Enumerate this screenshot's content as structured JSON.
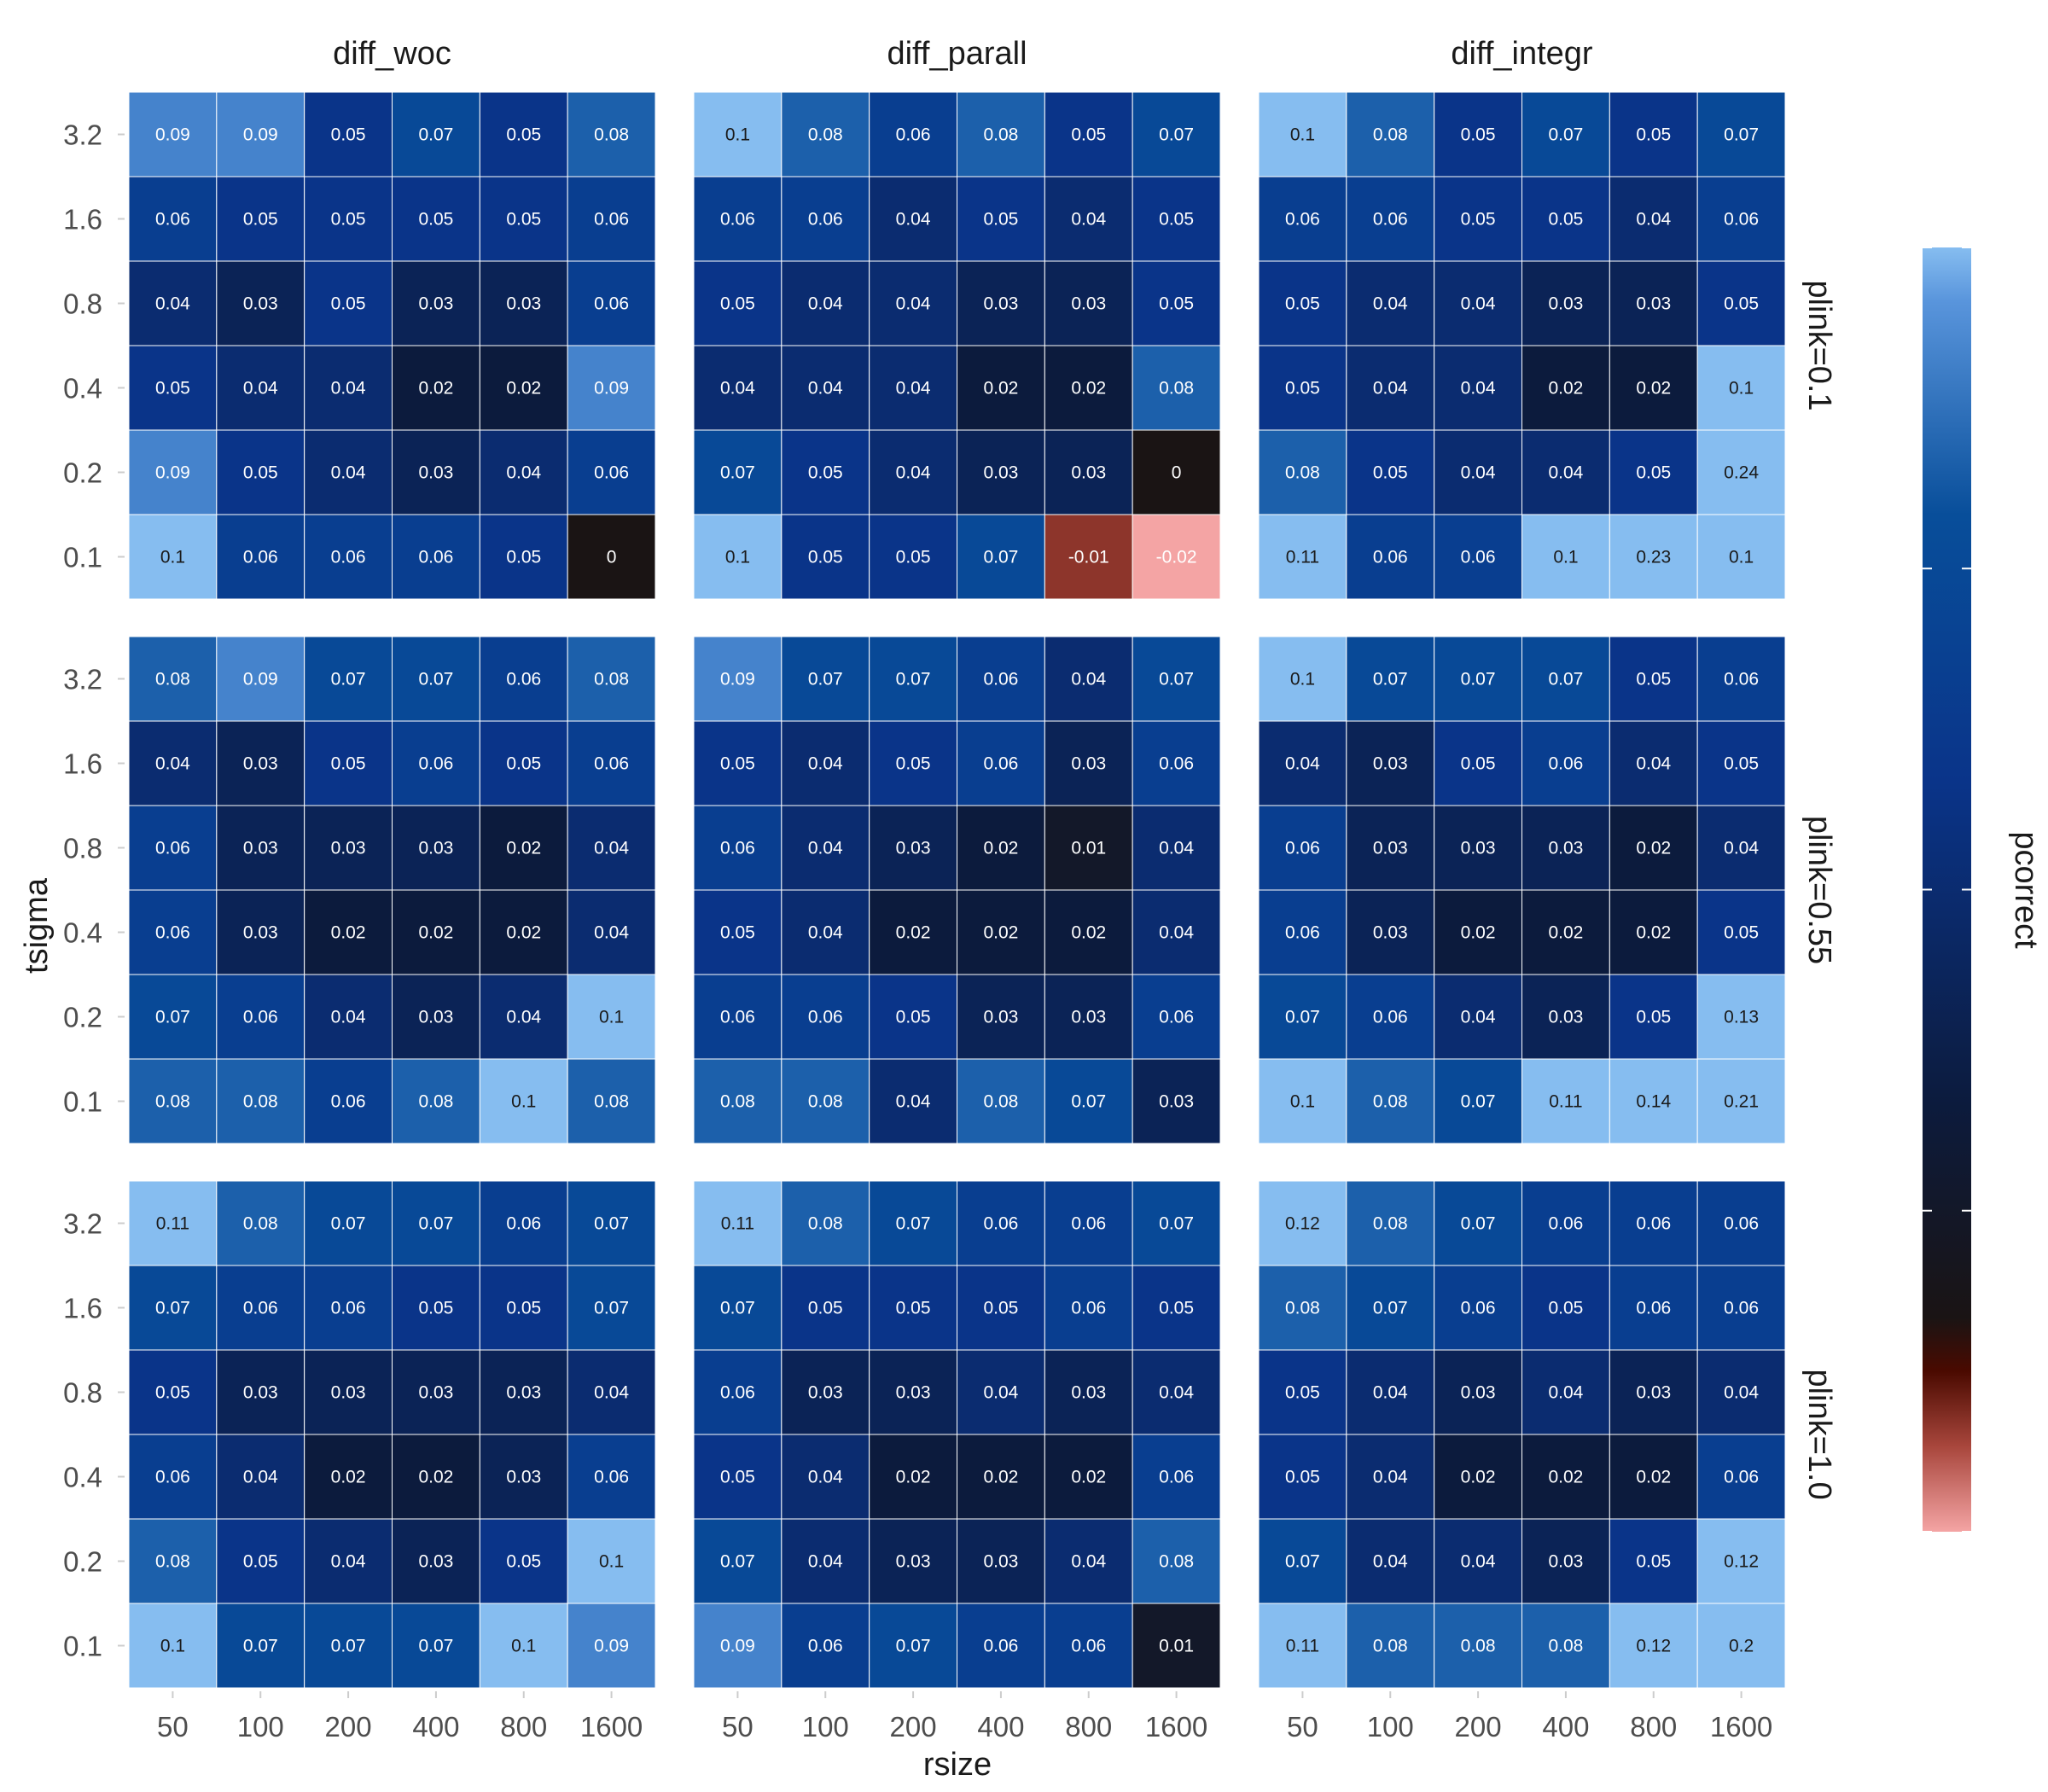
{
  "chart_data": {
    "type": "heatmap",
    "title": "",
    "xlabel": "rsize",
    "ylabel": "tsigma",
    "x_categories": [
      "50",
      "100",
      "200",
      "400",
      "800",
      "1600"
    ],
    "y_categories": [
      "3.2",
      "1.6",
      "0.8",
      "0.4",
      "0.2",
      "0.1"
    ],
    "facet_columns": [
      "diff_woc",
      "diff_parall",
      "diff_integr"
    ],
    "facet_rows": [
      "plink=0.1",
      "plink=0.55",
      "plink=1.0"
    ],
    "legend": {
      "title": "pcorrect",
      "placement": "right",
      "stops": [
        {
          "value": -0.02,
          "color": "#f4a4a4"
        },
        {
          "value": -0.012,
          "color": "#a8463c"
        },
        {
          "value": -0.005,
          "color": "#4a0a00"
        },
        {
          "value": 0.0,
          "color": "#1a1414"
        },
        {
          "value": 0.02,
          "color": "#0c1b3d"
        },
        {
          "value": 0.05,
          "color": "#0a3489"
        },
        {
          "value": 0.075,
          "color": "#084e9a"
        },
        {
          "value": 0.095,
          "color": "#5995dc"
        },
        {
          "value": 0.1,
          "color": "#86bdf0"
        }
      ]
    },
    "panels": [
      {
        "row": "plink=0.1",
        "col": "diff_woc",
        "values": [
          [
            0.09,
            0.09,
            0.05,
            0.07,
            0.05,
            0.08
          ],
          [
            0.06,
            0.05,
            0.05,
            0.05,
            0.05,
            0.06
          ],
          [
            0.04,
            0.03,
            0.05,
            0.03,
            0.03,
            0.06
          ],
          [
            0.05,
            0.04,
            0.04,
            0.02,
            0.02,
            0.09
          ],
          [
            0.09,
            0.05,
            0.04,
            0.03,
            0.04,
            0.06
          ],
          [
            0.1,
            0.06,
            0.06,
            0.06,
            0.05,
            0
          ]
        ]
      },
      {
        "row": "plink=0.1",
        "col": "diff_parall",
        "values": [
          [
            0.1,
            0.08,
            0.06,
            0.08,
            0.05,
            0.07
          ],
          [
            0.06,
            0.06,
            0.04,
            0.05,
            0.04,
            0.05
          ],
          [
            0.05,
            0.04,
            0.04,
            0.03,
            0.03,
            0.05
          ],
          [
            0.04,
            0.04,
            0.04,
            0.02,
            0.02,
            0.08
          ],
          [
            0.07,
            0.05,
            0.04,
            0.03,
            0.03,
            0
          ],
          [
            0.1,
            0.05,
            0.05,
            0.07,
            -0.01,
            -0.02
          ]
        ]
      },
      {
        "row": "plink=0.1",
        "col": "diff_integr",
        "values": [
          [
            0.1,
            0.08,
            0.05,
            0.07,
            0.05,
            0.07
          ],
          [
            0.06,
            0.06,
            0.05,
            0.05,
            0.04,
            0.06
          ],
          [
            0.05,
            0.04,
            0.04,
            0.03,
            0.03,
            0.05
          ],
          [
            0.05,
            0.04,
            0.04,
            0.02,
            0.02,
            0.1
          ],
          [
            0.08,
            0.05,
            0.04,
            0.04,
            0.05,
            0.24
          ],
          [
            0.11,
            0.06,
            0.06,
            0.1,
            0.23,
            0.1
          ]
        ]
      },
      {
        "row": "plink=0.55",
        "col": "diff_woc",
        "values": [
          [
            0.08,
            0.09,
            0.07,
            0.07,
            0.06,
            0.08
          ],
          [
            0.04,
            0.03,
            0.05,
            0.06,
            0.05,
            0.06
          ],
          [
            0.06,
            0.03,
            0.03,
            0.03,
            0.02,
            0.04
          ],
          [
            0.06,
            0.03,
            0.02,
            0.02,
            0.02,
            0.04
          ],
          [
            0.07,
            0.06,
            0.04,
            0.03,
            0.04,
            0.1
          ],
          [
            0.08,
            0.08,
            0.06,
            0.08,
            0.1,
            0.08
          ]
        ]
      },
      {
        "row": "plink=0.55",
        "col": "diff_parall",
        "values": [
          [
            0.09,
            0.07,
            0.07,
            0.06,
            0.04,
            0.07
          ],
          [
            0.05,
            0.04,
            0.05,
            0.06,
            0.03,
            0.06
          ],
          [
            0.06,
            0.04,
            0.03,
            0.02,
            0.01,
            0.04
          ],
          [
            0.05,
            0.04,
            0.02,
            0.02,
            0.02,
            0.04
          ],
          [
            0.06,
            0.06,
            0.05,
            0.03,
            0.03,
            0.06
          ],
          [
            0.08,
            0.08,
            0.04,
            0.08,
            0.07,
            0.03
          ]
        ]
      },
      {
        "row": "plink=0.55",
        "col": "diff_integr",
        "values": [
          [
            0.1,
            0.07,
            0.07,
            0.07,
            0.05,
            0.06
          ],
          [
            0.04,
            0.03,
            0.05,
            0.06,
            0.04,
            0.05
          ],
          [
            0.06,
            0.03,
            0.03,
            0.03,
            0.02,
            0.04
          ],
          [
            0.06,
            0.03,
            0.02,
            0.02,
            0.02,
            0.05
          ],
          [
            0.07,
            0.06,
            0.04,
            0.03,
            0.05,
            0.13
          ],
          [
            0.1,
            0.08,
            0.07,
            0.11,
            0.14,
            0.21
          ]
        ]
      },
      {
        "row": "plink=1.0",
        "col": "diff_woc",
        "values": [
          [
            0.11,
            0.08,
            0.07,
            0.07,
            0.06,
            0.07
          ],
          [
            0.07,
            0.06,
            0.06,
            0.05,
            0.05,
            0.07
          ],
          [
            0.05,
            0.03,
            0.03,
            0.03,
            0.03,
            0.04
          ],
          [
            0.06,
            0.04,
            0.02,
            0.02,
            0.03,
            0.06
          ],
          [
            0.08,
            0.05,
            0.04,
            0.03,
            0.05,
            0.1
          ],
          [
            0.1,
            0.07,
            0.07,
            0.07,
            0.1,
            0.09
          ]
        ]
      },
      {
        "row": "plink=1.0",
        "col": "diff_parall",
        "values": [
          [
            0.11,
            0.08,
            0.07,
            0.06,
            0.06,
            0.07
          ],
          [
            0.07,
            0.05,
            0.05,
            0.05,
            0.06,
            0.05
          ],
          [
            0.06,
            0.03,
            0.03,
            0.04,
            0.03,
            0.04
          ],
          [
            0.05,
            0.04,
            0.02,
            0.02,
            0.02,
            0.06
          ],
          [
            0.07,
            0.04,
            0.03,
            0.03,
            0.04,
            0.08
          ],
          [
            0.09,
            0.06,
            0.07,
            0.06,
            0.06,
            0.01
          ]
        ]
      },
      {
        "row": "plink=1.0",
        "col": "diff_integr",
        "values": [
          [
            0.12,
            0.08,
            0.07,
            0.06,
            0.06,
            0.06
          ],
          [
            0.08,
            0.07,
            0.06,
            0.05,
            0.06,
            0.06
          ],
          [
            0.05,
            0.04,
            0.03,
            0.04,
            0.03,
            0.04
          ],
          [
            0.05,
            0.04,
            0.02,
            0.02,
            0.02,
            0.06
          ],
          [
            0.07,
            0.04,
            0.04,
            0.03,
            0.05,
            0.12
          ],
          [
            0.11,
            0.08,
            0.08,
            0.08,
            0.12,
            0.2
          ]
        ]
      }
    ]
  }
}
